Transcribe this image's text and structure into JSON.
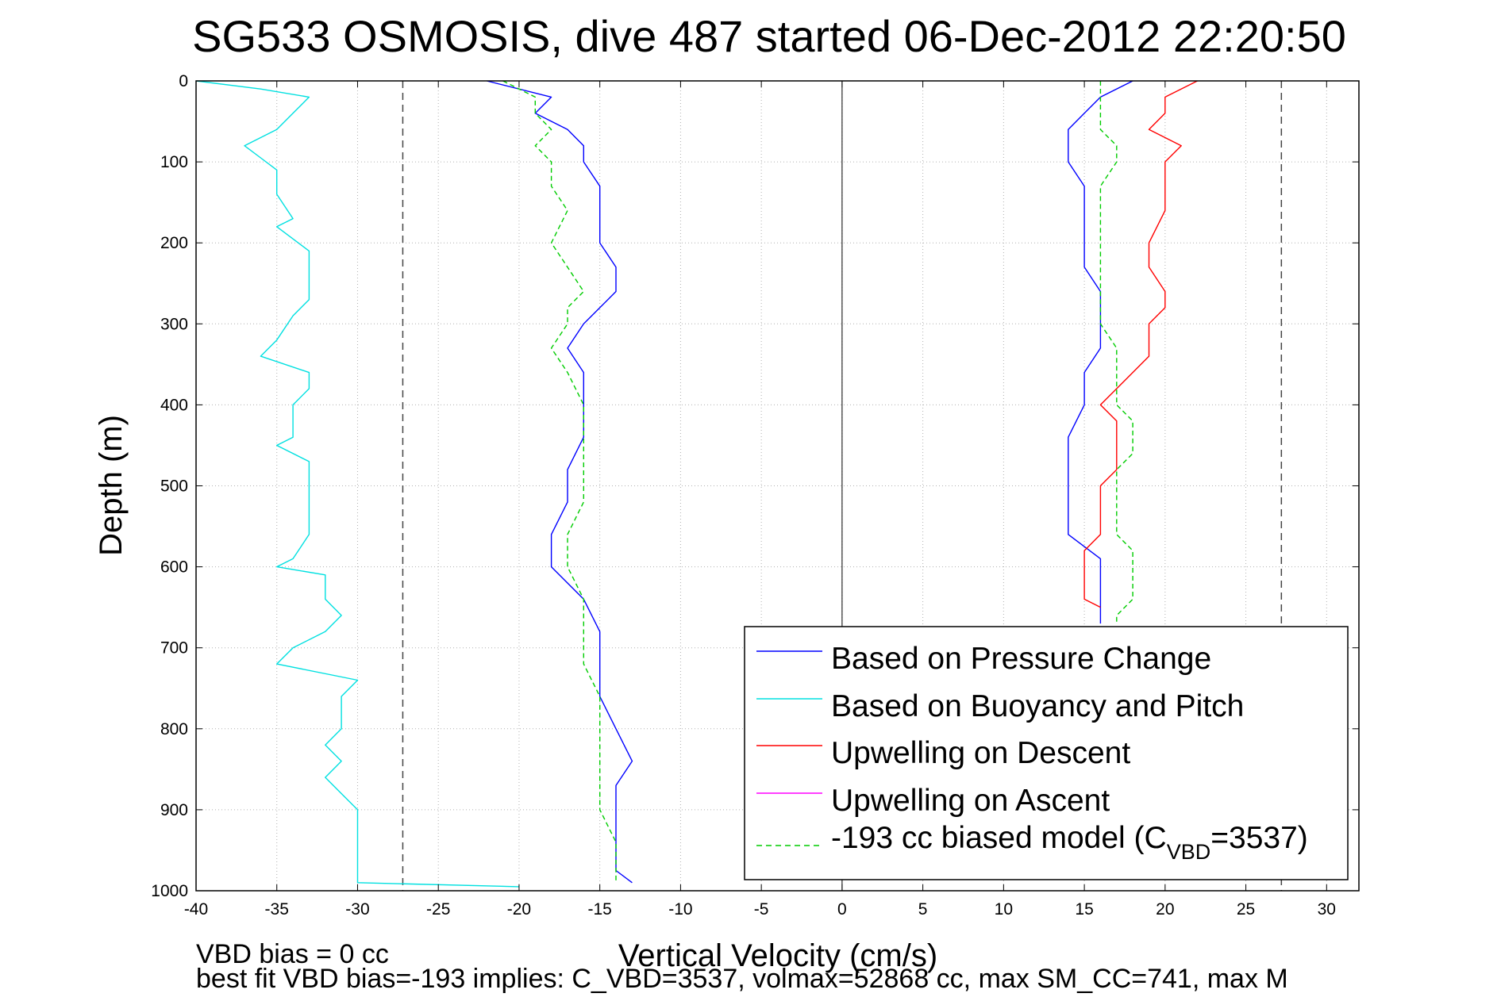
{
  "chart_data": {
    "type": "line",
    "title": "SG533 OSMOSIS, dive 487 started 06-Dec-2012 22:20:50",
    "xlabel": "Vertical Velocity (cm/s)",
    "ylabel": "Depth (m)",
    "xlim": [
      -40,
      32
    ],
    "ylim": [
      0,
      1000
    ],
    "y_reversed": true,
    "grid": true,
    "x_ticks": [
      -40,
      -35,
      -30,
      -25,
      -20,
      -15,
      -10,
      -5,
      0,
      5,
      10,
      15,
      20,
      25,
      30
    ],
    "y_ticks": [
      0,
      100,
      200,
      300,
      400,
      500,
      600,
      700,
      800,
      900,
      1000
    ],
    "legend_position": "bottom-right",
    "legend": [
      "Based on Pressure Change",
      "Based on Buoyancy and Pitch",
      "Upwelling on Descent",
      "Upwelling on Ascent",
      "-193 cc biased model (C"
    ],
    "legend_model_subscript": "VBD",
    "legend_model_suffix": "=3537)",
    "reference_lines": [
      {
        "x": -27.2,
        "style": "dashed",
        "color": "#444444"
      },
      {
        "x": 27.2,
        "style": "dashed",
        "color": "#444444"
      },
      {
        "x": 0,
        "style": "solid",
        "color": "#000000"
      }
    ],
    "series": [
      {
        "color": "#0000ff",
        "style": "solid",
        "segments": [
          {
            "depth": [
              0,
              20,
              40,
              60,
              80,
              100,
              130,
              160,
              200,
              230,
              260,
              280,
              300,
              330,
              360,
              400,
              440,
              480,
              520,
              560,
              600,
              640,
              680,
              720,
              760,
              800,
              840,
              870,
              900,
              940,
              975,
              990
            ],
            "velocity": [
              -22,
              -18,
              -19,
              -17,
              -16,
              -16,
              -15,
              -15,
              -15,
              -14,
              -14,
              -15,
              -16,
              -17,
              -16,
              -16,
              -16,
              -17,
              -17,
              -18,
              -18,
              -16,
              -15,
              -15,
              -15,
              -14,
              -13,
              -14,
              -14,
              -14,
              -14,
              -13
            ]
          },
          {
            "depth": [
              0,
              20,
              40,
              60,
              80,
              100,
              130,
              160,
              200,
              230,
              260,
              280,
              300,
              330,
              360,
              400,
              440,
              470,
              490,
              520,
              560,
              590,
              620,
              650,
              670
            ],
            "velocity": [
              18,
              16,
              15,
              14,
              14,
              14,
              15,
              15,
              15,
              15,
              16,
              16,
              16,
              16,
              15,
              15,
              14,
              14,
              14,
              14,
              14,
              16,
              16,
              16,
              16
            ]
          }
        ]
      },
      {
        "color": "#00e0e0",
        "style": "solid",
        "segments": [
          {
            "depth": [
              0,
              10,
              20,
              40,
              60,
              80,
              95,
              110,
              140,
              170,
              180,
              210,
              240,
              270,
              290,
              320,
              340,
              360,
              380,
              400,
              420,
              440,
              450,
              470,
              500,
              530,
              560,
              590,
              600,
              610,
              640,
              660,
              680,
              700,
              720,
              740,
              760,
              780,
              800,
              820,
              840,
              860,
              880,
              900,
              930,
              960,
              990,
              995
            ],
            "velocity": [
              -40,
              -36,
              -33,
              -34,
              -35,
              -37,
              -36,
              -35,
              -35,
              -34,
              -35,
              -33,
              -33,
              -33,
              -34,
              -35,
              -36,
              -33,
              -33,
              -34,
              -34,
              -34,
              -35,
              -33,
              -33,
              -33,
              -33,
              -34,
              -35,
              -32,
              -32,
              -31,
              -32,
              -34,
              -35,
              -30,
              -31,
              -31,
              -31,
              -32,
              -31,
              -32,
              -31,
              -30,
              -30,
              -30,
              -30,
              -20
            ]
          }
        ]
      },
      {
        "color": "#ff0000",
        "style": "solid",
        "segments": [
          {
            "depth": [
              0,
              20,
              40,
              60,
              80,
              100,
              130,
              160,
              200,
              230,
              260,
              280,
              300,
              330,
              340,
              360,
              380,
              400,
              420,
              440,
              460,
              480,
              500,
              520,
              540,
              560,
              580,
              600,
              620,
              640,
              650
            ],
            "velocity": [
              22,
              20,
              20,
              19,
              21,
              20,
              20,
              20,
              19,
              19,
              20,
              20,
              19,
              19,
              19,
              18,
              17,
              16,
              17,
              17,
              17,
              17,
              16,
              16,
              16,
              16,
              15,
              15,
              15,
              15,
              16
            ]
          }
        ]
      },
      {
        "color": "#ff00ff",
        "style": "solid",
        "segments": []
      },
      {
        "color": "#00cc00",
        "style": "dashed",
        "segments": [
          {
            "depth": [
              0,
              20,
              40,
              60,
              80,
              100,
              130,
              160,
              200,
              230,
              260,
              280,
              300,
              330,
              360,
              400,
              440,
              480,
              520,
              560,
              600,
              640,
              680,
              720,
              760,
              800,
              840,
              870,
              900,
              940,
              975,
              990
            ],
            "velocity": [
              -21,
              -19,
              -19,
              -18,
              -19,
              -18,
              -18,
              -17,
              -18,
              -17,
              -16,
              -17,
              -17,
              -18,
              -17,
              -16,
              -16,
              -16,
              -16,
              -17,
              -17,
              -16,
              -16,
              -16,
              -15,
              -15,
              -15,
              -15,
              -15,
              -14,
              -14,
              -14
            ]
          },
          {
            "depth": [
              0,
              20,
              40,
              60,
              80,
              100,
              130,
              160,
              200,
              230,
              260,
              280,
              300,
              330,
              360,
              400,
              420,
              440,
              460,
              480,
              520,
              560,
              580,
              600,
              620,
              640,
              660,
              670
            ],
            "velocity": [
              16,
              16,
              16,
              16,
              17,
              17,
              16,
              16,
              16,
              16,
              16,
              16,
              16,
              17,
              17,
              17,
              18,
              18,
              18,
              17,
              17,
              17,
              18,
              18,
              18,
              18,
              17,
              17
            ]
          }
        ]
      }
    ]
  },
  "footer": {
    "line1": "VBD bias = 0 cc",
    "line2": "best fit VBD bias=-193 implies: C_VBD=3537, volmax=52868 cc, max SM_CC=741, max M"
  }
}
